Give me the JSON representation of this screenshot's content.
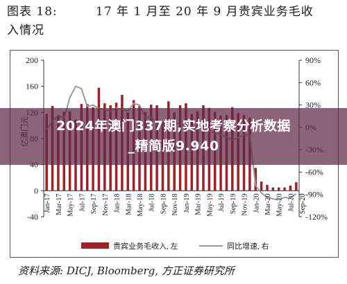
{
  "figure": {
    "label": "图表 18:",
    "title_line1": "17 年 1 月至 20 年 9 月贵宾业务毛收",
    "title_line2": "入情况",
    "source": "资料来源: DICJ, Bloomberg, 方正证券研究所"
  },
  "overlay": {
    "line1": "2024年澳门337期,实地考察分析数据",
    "line2": "_精简版9.940",
    "background": "#602846"
  },
  "chart_data": {
    "type": "bar",
    "title": "",
    "ylabel": "亿澳门元",
    "y2label": "",
    "ylim": [
      -40,
      200
    ],
    "yticks": [
      -40,
      0,
      40,
      80,
      120,
      160,
      200
    ],
    "y2lim": [
      -120,
      90
    ],
    "y2ticks": [
      "-120%",
      "-90%",
      "-60%",
      "-30%",
      "0%",
      "30%",
      "60%",
      "90%"
    ],
    "y2tick_values": [
      -120,
      -90,
      -60,
      -30,
      0,
      30,
      60,
      90
    ],
    "grid": "none",
    "legend": "bottom",
    "colors": {
      "bar": "#a31f26",
      "line": "#9a9a9a",
      "axis": "#333333"
    },
    "x_tick_labels": [
      "Jan-17",
      "Mar-17",
      "May-17",
      "Jul-17",
      "Sep-17",
      "Nov-17",
      "Jan-18",
      "Mar-18",
      "May-18",
      "Jul-18",
      "Sep-18",
      "Nov-18",
      "Jan-19",
      "Mar-19",
      "May-19",
      "Jul-19",
      "Sep-19",
      "Nov-19",
      "Jan-20",
      "Mar-20",
      "May-20",
      "Jul-20",
      "Sep-20"
    ],
    "categories": [
      "Jan-17",
      "Feb-17",
      "Mar-17",
      "Apr-17",
      "May-17",
      "Jun-17",
      "Jul-17",
      "Aug-17",
      "Sep-17",
      "Oct-17",
      "Nov-17",
      "Dec-17",
      "Jan-18",
      "Feb-18",
      "Mar-18",
      "Apr-18",
      "May-18",
      "Jun-18",
      "Jul-18",
      "Aug-18",
      "Sep-18",
      "Oct-18",
      "Nov-18",
      "Dec-18",
      "Jan-19",
      "Feb-19",
      "Mar-19",
      "Apr-19",
      "May-19",
      "Jul-19",
      "Aug-19",
      "Sep-19",
      "Oct-19",
      "Nov-19",
      "Dec-19",
      "Jan-20",
      "Feb-20",
      "Mar-20",
      "Apr-20",
      "May-20",
      "Jun-20",
      "Jul-20",
      "Aug-20",
      "Sep-20"
    ],
    "series": [
      {
        "name": "贵宾业务毛收入, 左",
        "axis": "left",
        "type": "bar",
        "values": [
          118,
          130,
          116,
          121,
          122,
          109,
          133,
          133,
          128,
          158,
          134,
          131,
          135,
          147,
          120,
          139,
          130,
          121,
          132,
          131,
          106,
          137,
          120,
          131,
          134,
          118,
          122,
          131,
          127,
          121,
          115,
          116,
          128,
          119,
          116,
          112,
          35,
          14,
          9,
          5,
          5,
          5,
          8,
          13
        ]
      },
      {
        "name": "同比增速, 右",
        "axis": "right",
        "type": "line",
        "values": [
          -3,
          8,
          16,
          12,
          40,
          55,
          52,
          28,
          30,
          25,
          24,
          22,
          26,
          24,
          22,
          32,
          30,
          13,
          14,
          4,
          2,
          3,
          7,
          4,
          2,
          -4,
          0,
          -1,
          -6,
          -7,
          -10,
          -13,
          -17,
          -14,
          -10,
          -10,
          -78,
          -88,
          -94,
          -96,
          -97,
          -94,
          -95,
          -89
        ]
      }
    ]
  }
}
